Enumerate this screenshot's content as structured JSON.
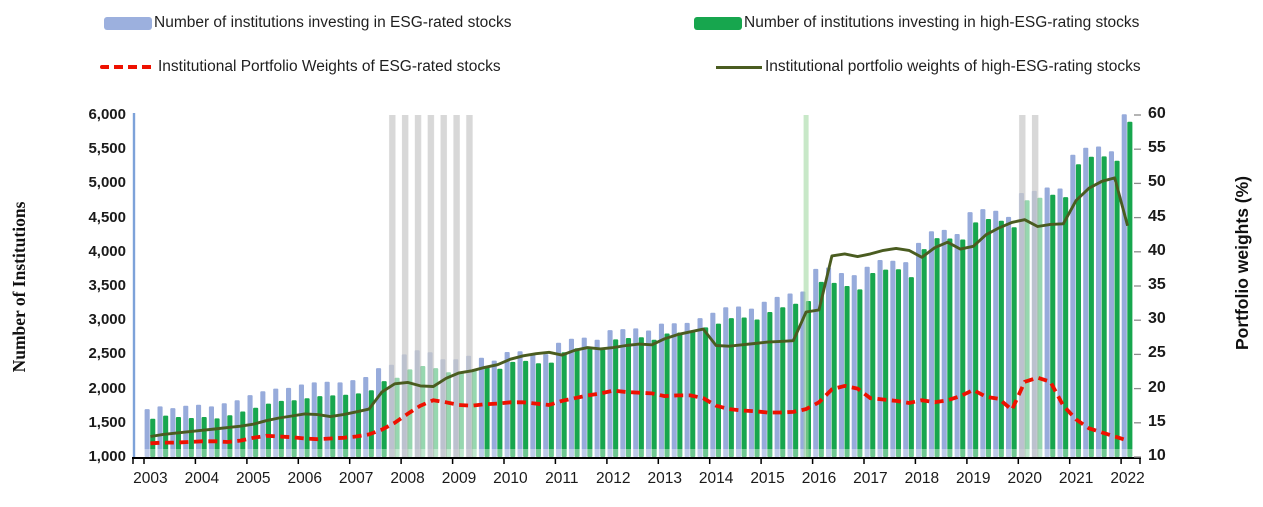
{
  "legend": {
    "items": [
      {
        "id": "esg-bar",
        "label": "Number of institutions investing in ESG-rated stocks",
        "color": "#9cb0de"
      },
      {
        "id": "high-esg-bar",
        "label": "Number of institutions investing in high-ESG-rating stocks",
        "color": "#17a64e"
      },
      {
        "id": "esg-weight-line",
        "label": "Institutional Portfolio Weights of ESG-rated stocks",
        "color": "#ee1100"
      },
      {
        "id": "high-esg-weight-line",
        "label": "Institutional portfolio weights of high-ESG-rating stocks",
        "color": "#4a5c20"
      }
    ]
  },
  "left_axis": {
    "title": "Number of Institutions",
    "ticks": [
      "6,000",
      "5,500",
      "5,000",
      "4,500",
      "4,000",
      "3,500",
      "3,000",
      "2,500",
      "2,000",
      "1,500",
      "1,000"
    ]
  },
  "right_axis": {
    "title": "Portfolio weights (%)",
    "ticks": [
      "60",
      "55",
      "50",
      "45",
      "40",
      "35",
      "30",
      "25",
      "20",
      "15",
      "10"
    ]
  },
  "x_axis": {
    "years": [
      "2003",
      "2004",
      "2005",
      "2006",
      "2007",
      "2008",
      "2009",
      "2010",
      "2011",
      "2012",
      "2013",
      "2014",
      "2015",
      "2016",
      "2017",
      "2018",
      "2019",
      "2020",
      "2021",
      "2022"
    ]
  },
  "chart_data": {
    "type": "combo-grouped-bars-plus-lines",
    "left_axis_range": [
      1000,
      6000
    ],
    "right_axis_range": [
      10,
      60
    ],
    "quarters": [
      "2003Q1",
      "2003Q2",
      "2003Q3",
      "2003Q4",
      "2004Q1",
      "2004Q2",
      "2004Q3",
      "2004Q4",
      "2005Q1",
      "2005Q2",
      "2005Q3",
      "2005Q4",
      "2006Q1",
      "2006Q2",
      "2006Q3",
      "2006Q4",
      "2007Q1",
      "2007Q2",
      "2007Q3",
      "2007Q4",
      "2008Q1",
      "2008Q2",
      "2008Q3",
      "2008Q4",
      "2009Q1",
      "2009Q2",
      "2009Q3",
      "2009Q4",
      "2010Q1",
      "2010Q2",
      "2010Q3",
      "2010Q4",
      "2011Q1",
      "2011Q2",
      "2011Q3",
      "2011Q4",
      "2012Q1",
      "2012Q2",
      "2012Q3",
      "2012Q4",
      "2013Q1",
      "2013Q2",
      "2013Q3",
      "2013Q4",
      "2014Q1",
      "2014Q2",
      "2014Q3",
      "2014Q4",
      "2015Q1",
      "2015Q2",
      "2015Q3",
      "2015Q4",
      "2016Q1",
      "2016Q2",
      "2016Q3",
      "2016Q4",
      "2017Q1",
      "2017Q2",
      "2017Q3",
      "2017Q4",
      "2018Q1",
      "2018Q2",
      "2018Q3",
      "2018Q4",
      "2019Q1",
      "2019Q2",
      "2019Q3",
      "2019Q4",
      "2020Q1",
      "2020Q2",
      "2020Q3",
      "2020Q4",
      "2021Q1",
      "2021Q2",
      "2021Q3",
      "2021Q4",
      "2022Q1"
    ],
    "series": [
      {
        "name": "Number of institutions investing in ESG-rated stocks",
        "type": "bar",
        "axis": "left",
        "color": "#97abdb",
        "values": [
          1700,
          1740,
          1715,
          1750,
          1765,
          1740,
          1785,
          1830,
          1905,
          1960,
          2000,
          2010,
          2060,
          2090,
          2100,
          2090,
          2125,
          2170,
          2300,
          2350,
          2500,
          2560,
          2530,
          2430,
          2430,
          2480,
          2450,
          2410,
          2535,
          2545,
          2500,
          2505,
          2670,
          2730,
          2745,
          2715,
          2855,
          2870,
          2880,
          2850,
          2950,
          2955,
          2960,
          3030,
          3110,
          3190,
          3200,
          3170,
          3270,
          3340,
          3390,
          3420,
          3750,
          3770,
          3690,
          3660,
          3780,
          3880,
          3870,
          3850,
          4130,
          4300,
          4320,
          4260,
          4580,
          4625,
          4600,
          4510,
          4860,
          4890,
          4940,
          4925,
          5420,
          5520,
          5540,
          5470,
          6010
        ]
      },
      {
        "name": "Number of institutions investing in high-ESG-rating stocks",
        "type": "bar",
        "axis": "left",
        "color": "#17a64e",
        "values": [
          1560,
          1605,
          1585,
          1570,
          1585,
          1565,
          1610,
          1665,
          1720,
          1780,
          1820,
          1830,
          1860,
          1890,
          1900,
          1910,
          1930,
          1975,
          2110,
          2160,
          2280,
          2330,
          2300,
          2240,
          2230,
          2280,
          2320,
          2290,
          2390,
          2405,
          2370,
          2380,
          2530,
          2590,
          2600,
          2570,
          2720,
          2740,
          2750,
          2715,
          2805,
          2820,
          2830,
          2895,
          2950,
          3030,
          3040,
          3010,
          3120,
          3190,
          3240,
          3280,
          3560,
          3545,
          3500,
          3450,
          3690,
          3740,
          3745,
          3630,
          4040,
          4200,
          4195,
          4180,
          4430,
          4480,
          4455,
          4360,
          4755,
          4790,
          4835,
          4800,
          5280,
          5390,
          5395,
          5330,
          5900
        ]
      },
      {
        "name": "Institutional Portfolio Weights of ESG-rated stocks",
        "type": "line",
        "style": "dashed",
        "axis": "right",
        "color": "#ee1100",
        "values": [
          12.0,
          12.1,
          12.1,
          12.2,
          12.3,
          12.3,
          12.2,
          12.4,
          12.8,
          13.1,
          13.0,
          12.9,
          12.7,
          12.6,
          12.7,
          12.8,
          13.0,
          13.3,
          14.0,
          15.0,
          16.3,
          17.5,
          18.3,
          18.0,
          17.6,
          17.5,
          17.7,
          17.8,
          18.0,
          18.0,
          17.8,
          17.6,
          18.2,
          18.6,
          19.0,
          19.3,
          19.7,
          19.5,
          19.4,
          19.3,
          18.9,
          19.0,
          19.0,
          18.6,
          17.5,
          17.0,
          16.8,
          16.7,
          16.5,
          16.5,
          16.6,
          17.0,
          18.0,
          19.9,
          20.4,
          20.0,
          18.6,
          18.4,
          18.2,
          17.9,
          18.3,
          18.0,
          18.3,
          18.9,
          19.8,
          18.8,
          18.5,
          16.9,
          21.0,
          21.6,
          21.0,
          17.5,
          15.5,
          14.2,
          13.6,
          13.0,
          12.4
        ]
      },
      {
        "name": "Institutional portfolio weights of high-ESG-rating stocks",
        "type": "line",
        "style": "solid",
        "axis": "right",
        "color": "#4a5c20",
        "values": [
          13.0,
          13.3,
          13.5,
          13.7,
          13.9,
          14.1,
          14.3,
          14.5,
          14.8,
          15.3,
          15.7,
          16.0,
          16.3,
          16.2,
          15.9,
          16.2,
          16.6,
          17.0,
          19.5,
          20.7,
          20.9,
          20.4,
          20.3,
          21.5,
          22.3,
          22.6,
          23.1,
          23.5,
          24.3,
          24.8,
          25.1,
          25.3,
          24.9,
          25.6,
          26.0,
          25.8,
          26.0,
          26.3,
          26.5,
          26.4,
          27.3,
          27.9,
          28.3,
          28.7,
          26.3,
          26.2,
          26.4,
          26.6,
          26.8,
          26.9,
          27.0,
          31.2,
          31.5,
          39.4,
          39.7,
          39.3,
          39.7,
          40.2,
          40.5,
          40.2,
          39.2,
          40.6,
          41.4,
          40.4,
          40.8,
          42.5,
          43.5,
          44.3,
          44.7,
          43.7,
          44.0,
          44.1,
          47.5,
          49.3,
          50.3,
          50.8,
          43.8
        ]
      }
    ],
    "shaded_bands": [
      {
        "name": "recession-band-2008",
        "from": "2007Q4",
        "to": "2009Q2",
        "color": "#bdbdbd"
      },
      {
        "name": "recession-band-2020",
        "from": "2020Q1",
        "to": "2020Q2",
        "color": "#bdbdbd"
      }
    ],
    "event_marker": {
      "at": "2015Q4",
      "color": "#a4d9a4"
    }
  }
}
